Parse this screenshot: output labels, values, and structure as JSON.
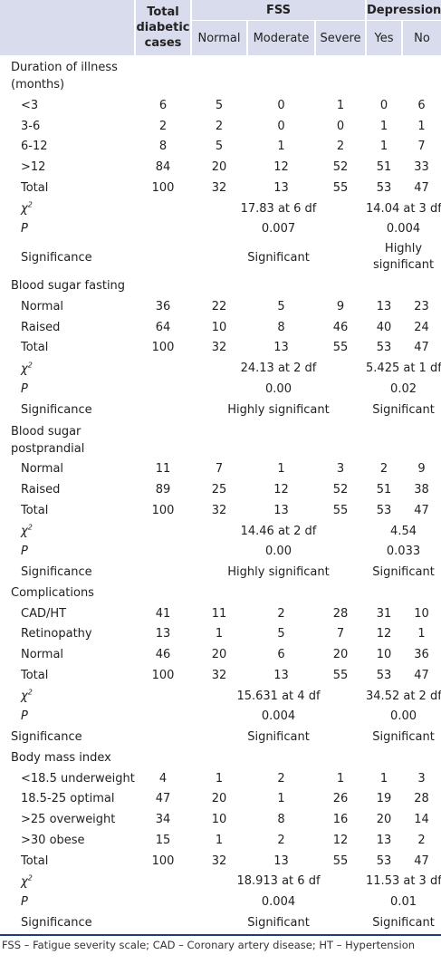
{
  "header": {
    "total": "Total diabetic cases",
    "fss": "FSS",
    "depression": "Depression",
    "normal": "Normal",
    "moderate": "Moderate",
    "severe": "Severe",
    "yes": "Yes",
    "no": "No"
  },
  "duration": {
    "label": "Duration of illness (months)",
    "rows": [
      {
        "label": "<3",
        "total": "6",
        "normal": "5",
        "moderate": "0",
        "severe": "1",
        "yes": "0",
        "no": "6"
      },
      {
        "label": "3-6",
        "total": "2",
        "normal": "2",
        "moderate": "0",
        "severe": "0",
        "yes": "1",
        "no": "1"
      },
      {
        "label": "6-12",
        "total": "8",
        "normal": "5",
        "moderate": "1",
        "severe": "2",
        "yes": "1",
        "no": "7"
      },
      {
        "label": ">12",
        "total": "84",
        "normal": "20",
        "moderate": "12",
        "severe": "52",
        "yes": "51",
        "no": "33"
      },
      {
        "label": "Total",
        "total": "100",
        "normal": "32",
        "moderate": "13",
        "severe": "55",
        "yes": "53",
        "no": "47"
      }
    ],
    "chi_fss": "17.83 at 6 df",
    "chi_dep": "14.04 at 3 df",
    "p_fss": "0.007",
    "p_dep": "0.004",
    "sig_fss": "Significant",
    "sig_dep": "Highly significant"
  },
  "fasting": {
    "label": "Blood sugar fasting",
    "rows": [
      {
        "label": "Normal",
        "total": "36",
        "normal": "22",
        "moderate": "5",
        "severe": "9",
        "yes": "13",
        "no": "23"
      },
      {
        "label": "Raised",
        "total": "64",
        "normal": "10",
        "moderate": "8",
        "severe": "46",
        "yes": "40",
        "no": "24"
      },
      {
        "label": "Total",
        "total": "100",
        "normal": "32",
        "moderate": "13",
        "severe": "55",
        "yes": "53",
        "no": "47"
      }
    ],
    "chi_fss": "24.13 at 2 df",
    "chi_dep": "5.425 at 1 df",
    "p_fss": "0.00",
    "p_dep": "0.02",
    "sig_fss": "Highly significant",
    "sig_dep": "Significant"
  },
  "postprandial": {
    "label": "Blood sugar postprandial",
    "rows": [
      {
        "label": "Normal",
        "total": "11",
        "normal": "7",
        "moderate": "1",
        "severe": "3",
        "yes": "2",
        "no": "9"
      },
      {
        "label": "Raised",
        "total": "89",
        "normal": "25",
        "moderate": "12",
        "severe": "52",
        "yes": "51",
        "no": "38"
      },
      {
        "label": "Total",
        "total": "100",
        "normal": "32",
        "moderate": "13",
        "severe": "55",
        "yes": "53",
        "no": "47"
      }
    ],
    "chi_fss": "14.46 at 2 df",
    "chi_dep": "4.54",
    "p_fss": "0.00",
    "p_dep": "0.033",
    "sig_fss": "Highly significant",
    "sig_dep": "Significant"
  },
  "complications": {
    "label": "Complications",
    "rows": [
      {
        "label": "CAD/HT",
        "total": "41",
        "normal": "11",
        "moderate": "2",
        "severe": "28",
        "yes": "31",
        "no": "10"
      },
      {
        "label": "Retinopathy",
        "total": "13",
        "normal": "1",
        "moderate": "5",
        "severe": "7",
        "yes": "12",
        "no": "1"
      },
      {
        "label": "Normal",
        "total": "46",
        "normal": "20",
        "moderate": "6",
        "severe": "20",
        "yes": "10",
        "no": "36"
      },
      {
        "label": "Total",
        "total": "100",
        "normal": "32",
        "moderate": "13",
        "severe": "55",
        "yes": "53",
        "no": "47"
      }
    ],
    "chi_fss": "15.631 at 4 df",
    "chi_dep": "34.52 at 2 df",
    "p_fss": "0.004",
    "p_dep": "0.00",
    "sig_fss": "Significant",
    "sig_dep": "Significant"
  },
  "bmi": {
    "label": "Body mass index",
    "rows": [
      {
        "label": "<18.5 underweight",
        "total": "4",
        "normal": "1",
        "moderate": "2",
        "severe": "1",
        "yes": "1",
        "no": "3"
      },
      {
        "label": "18.5-25 optimal",
        "total": "47",
        "normal": "20",
        "moderate": "1",
        "severe": "26",
        "yes": "19",
        "no": "28"
      },
      {
        "label": ">25 overweight",
        "total": "34",
        "normal": "10",
        "moderate": "8",
        "severe": "16",
        "yes": "20",
        "no": "14"
      },
      {
        "label": ">30 obese",
        "total": "15",
        "normal": "1",
        "moderate": "2",
        "severe": "12",
        "yes": "13",
        "no": "2"
      },
      {
        "label": "Total",
        "total": "100",
        "normal": "32",
        "moderate": "13",
        "severe": "55",
        "yes": "53",
        "no": "47"
      }
    ],
    "chi_fss": "18.913 at 6 df",
    "chi_dep": "11.53 at 3 df",
    "p_fss": "0.004",
    "p_dep": "0.01",
    "sig_fss": "Significant",
    "sig_dep": "Significant"
  },
  "stat_labels": {
    "chi": "χ",
    "p": "P",
    "significance": "Significance"
  },
  "footer": "FSS – Fatigue severity scale; CAD – Coronary artery disease; HT – Hypertension"
}
